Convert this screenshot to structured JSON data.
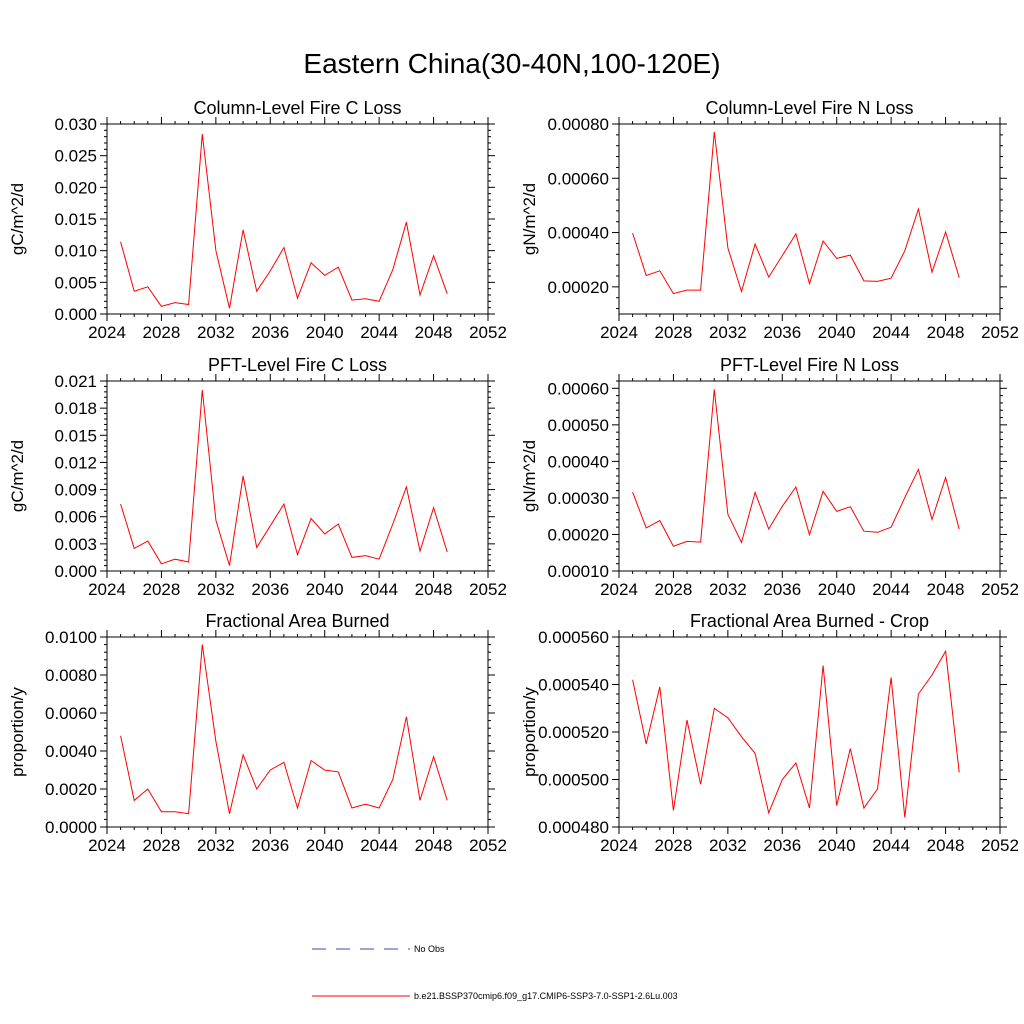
{
  "title": "Eastern China(30-40N,100-120E)",
  "legend": {
    "items": [
      {
        "label": "No Obs",
        "color": "#4444aa",
        "style": "dashed"
      },
      {
        "label": "b.e21.BSSP370cmip6.f09_g17.CMIP6-SSP3-7.0-SSP1-2.6Lu.003",
        "color": "#ff0000",
        "style": "solid"
      }
    ]
  },
  "chart_data": [
    {
      "type": "line",
      "title": "Column-Level Fire C Loss",
      "ylabel": "gC/m^2/d",
      "xlabel": "",
      "xlim": [
        2024,
        2052
      ],
      "xticks": [
        2024,
        2028,
        2032,
        2036,
        2040,
        2044,
        2048,
        2052
      ],
      "xtick_labels": [
        "2024",
        "2028",
        "2032",
        "2036",
        "2040",
        "2044",
        "2048",
        "2052"
      ],
      "ylim": [
        0.0,
        0.03
      ],
      "yticks": [
        0.0,
        0.005,
        0.01,
        0.015,
        0.02,
        0.025,
        0.03
      ],
      "ytick_labels": [
        "0.000",
        "0.005",
        "0.010",
        "0.015",
        "0.020",
        "0.025",
        "0.030"
      ],
      "grid": false,
      "x": [
        2025,
        2026,
        2027,
        2028,
        2029,
        2030,
        2031,
        2032,
        2033,
        2034,
        2035,
        2036,
        2037,
        2038,
        2039,
        2040,
        2041,
        2042,
        2043,
        2044,
        2045,
        2046,
        2047,
        2048,
        2049
      ],
      "series": [
        {
          "color": "#ff0000",
          "values": [
            0.0114,
            0.0036,
            0.0043,
            0.0012,
            0.0018,
            0.0015,
            0.0284,
            0.01,
            0.0009,
            0.0133,
            0.0036,
            0.0068,
            0.0105,
            0.0025,
            0.0081,
            0.0061,
            0.0074,
            0.0022,
            0.0024,
            0.002,
            0.007,
            0.0145,
            0.003,
            0.0092,
            0.0032
          ]
        }
      ]
    },
    {
      "type": "line",
      "title": "Column-Level Fire N Loss",
      "ylabel": "gN/m^2/d",
      "xlabel": "",
      "xlim": [
        2024,
        2052
      ],
      "xticks": [
        2024,
        2028,
        2032,
        2036,
        2040,
        2044,
        2048,
        2052
      ],
      "xtick_labels": [
        "2024",
        "2028",
        "2032",
        "2036",
        "2040",
        "2044",
        "2048",
        "2052"
      ],
      "ylim": [
        0.0001,
        0.0008
      ],
      "yticks": [
        0.0002,
        0.0004,
        0.0006,
        0.0008
      ],
      "ytick_labels": [
        "0.00020",
        "0.00040",
        "0.00060",
        "0.00080"
      ],
      "grid": false,
      "x": [
        2025,
        2026,
        2027,
        2028,
        2029,
        2030,
        2031,
        2032,
        2033,
        2034,
        2035,
        2036,
        2037,
        2038,
        2039,
        2040,
        2041,
        2042,
        2043,
        2044,
        2045,
        2046,
        2047,
        2048,
        2049
      ],
      "series": [
        {
          "color": "#ff0000",
          "values": [
            0.000398,
            0.000242,
            0.000259,
            0.000175,
            0.000188,
            0.000188,
            0.000771,
            0.000343,
            0.000183,
            0.000358,
            0.000236,
            0.000315,
            0.000395,
            0.000212,
            0.000369,
            0.000305,
            0.000317,
            0.000222,
            0.00022,
            0.000232,
            0.000333,
            0.000487,
            0.000254,
            0.000402,
            0.000234
          ]
        }
      ]
    },
    {
      "type": "line",
      "title": "PFT-Level Fire C Loss",
      "ylabel": "gC/m^2/d",
      "xlabel": "",
      "xlim": [
        2024,
        2052
      ],
      "xticks": [
        2024,
        2028,
        2032,
        2036,
        2040,
        2044,
        2048,
        2052
      ],
      "xtick_labels": [
        "2024",
        "2028",
        "2032",
        "2036",
        "2040",
        "2044",
        "2048",
        "2052"
      ],
      "ylim": [
        0.0,
        0.021
      ],
      "yticks": [
        0.0,
        0.003,
        0.006,
        0.009,
        0.012,
        0.015,
        0.018,
        0.021
      ],
      "ytick_labels": [
        "0.000",
        "0.003",
        "0.006",
        "0.009",
        "0.012",
        "0.015",
        "0.018",
        "0.021"
      ],
      "grid": false,
      "x": [
        2025,
        2026,
        2027,
        2028,
        2029,
        2030,
        2031,
        2032,
        2033,
        2034,
        2035,
        2036,
        2037,
        2038,
        2039,
        2040,
        2041,
        2042,
        2043,
        2044,
        2045,
        2046,
        2047,
        2048,
        2049
      ],
      "series": [
        {
          "color": "#ff0000",
          "values": [
            0.0074,
            0.0025,
            0.0033,
            0.0008,
            0.0013,
            0.001,
            0.02,
            0.0056,
            0.0006,
            0.0105,
            0.0026,
            0.005,
            0.0074,
            0.0018,
            0.0058,
            0.0041,
            0.0052,
            0.0015,
            0.0017,
            0.0013,
            0.0052,
            0.0093,
            0.0022,
            0.007,
            0.0021
          ]
        }
      ]
    },
    {
      "type": "line",
      "title": "PFT-Level Fire N Loss",
      "ylabel": "gN/m^2/d",
      "xlabel": "",
      "xlim": [
        2024,
        2052
      ],
      "xticks": [
        2024,
        2028,
        2032,
        2036,
        2040,
        2044,
        2048,
        2052
      ],
      "xtick_labels": [
        "2024",
        "2028",
        "2032",
        "2036",
        "2040",
        "2044",
        "2048",
        "2052"
      ],
      "ylim": [
        0.0001,
        0.00062
      ],
      "yticks": [
        0.0001,
        0.0002,
        0.0003,
        0.0004,
        0.0005,
        0.0006
      ],
      "ytick_labels": [
        "0.00010",
        "0.00020",
        "0.00030",
        "0.00040",
        "0.00050",
        "0.00060"
      ],
      "grid": false,
      "x": [
        2025,
        2026,
        2027,
        2028,
        2029,
        2030,
        2031,
        2032,
        2033,
        2034,
        2035,
        2036,
        2037,
        2038,
        2039,
        2040,
        2041,
        2042,
        2043,
        2044,
        2045,
        2046,
        2047,
        2048,
        2049
      ],
      "series": [
        {
          "color": "#ff0000",
          "values": [
            0.000316,
            0.000218,
            0.000238,
            0.000168,
            0.000181,
            0.000179,
            0.000597,
            0.000255,
            0.000178,
            0.000315,
            0.000215,
            0.000277,
            0.00033,
            0.000199,
            0.000318,
            0.000263,
            0.000276,
            0.000209,
            0.000206,
            0.00022,
            0.000301,
            0.000378,
            0.000241,
            0.000356,
            0.000214
          ]
        }
      ]
    },
    {
      "type": "line",
      "title": "Fractional Area Burned",
      "ylabel": "proportion/y",
      "xlabel": "",
      "xlim": [
        2024,
        2052
      ],
      "xticks": [
        2024,
        2028,
        2032,
        2036,
        2040,
        2044,
        2048,
        2052
      ],
      "xtick_labels": [
        "2024",
        "2028",
        "2032",
        "2036",
        "2040",
        "2044",
        "2048",
        "2052"
      ],
      "ylim": [
        0.0,
        0.01
      ],
      "yticks": [
        0.0,
        0.002,
        0.004,
        0.006,
        0.008,
        0.01
      ],
      "ytick_labels": [
        "0.0000",
        "0.0020",
        "0.0040",
        "0.0060",
        "0.0080",
        "0.0100"
      ],
      "grid": false,
      "x": [
        2025,
        2026,
        2027,
        2028,
        2029,
        2030,
        2031,
        2032,
        2033,
        2034,
        2035,
        2036,
        2037,
        2038,
        2039,
        2040,
        2041,
        2042,
        2043,
        2044,
        2045,
        2046,
        2047,
        2048,
        2049
      ],
      "series": [
        {
          "color": "#ff0000",
          "values": [
            0.0048,
            0.0014,
            0.002,
            0.0008,
            0.0008,
            0.0007,
            0.0096,
            0.0045,
            0.0007,
            0.0038,
            0.002,
            0.003,
            0.0034,
            0.001,
            0.0035,
            0.003,
            0.0029,
            0.001,
            0.0012,
            0.001,
            0.0025,
            0.0058,
            0.0014,
            0.0037,
            0.0014
          ]
        }
      ]
    },
    {
      "type": "line",
      "title": "Fractional Area Burned - Crop",
      "ylabel": "proportion/y",
      "xlabel": "",
      "xlim": [
        2024,
        2052
      ],
      "xticks": [
        2024,
        2028,
        2032,
        2036,
        2040,
        2044,
        2048,
        2052
      ],
      "xtick_labels": [
        "2024",
        "2028",
        "2032",
        "2036",
        "2040",
        "2044",
        "2048",
        "2052"
      ],
      "ylim": [
        0.00048,
        0.00056
      ],
      "yticks": [
        0.00048,
        0.0005,
        0.00052,
        0.00054,
        0.00056
      ],
      "ytick_labels": [
        "0.000480",
        "0.000500",
        "0.000520",
        "0.000540",
        "0.000560"
      ],
      "grid": false,
      "x": [
        2025,
        2026,
        2027,
        2028,
        2029,
        2030,
        2031,
        2032,
        2033,
        2034,
        2035,
        2036,
        2037,
        2038,
        2039,
        2040,
        2041,
        2042,
        2043,
        2044,
        2045,
        2046,
        2047,
        2048,
        2049
      ],
      "series": [
        {
          "color": "#ff0000",
          "values": [
            0.000542,
            0.000515,
            0.000539,
            0.000487,
            0.000525,
            0.000498,
            0.00053,
            0.000526,
            0.000518,
            0.000511,
            0.000486,
            0.0005,
            0.000507,
            0.000488,
            0.000548,
            0.000489,
            0.000513,
            0.000488,
            0.000496,
            0.000543,
            0.000484,
            0.000536,
            0.000544,
            0.000554,
            0.000503
          ]
        }
      ]
    }
  ]
}
